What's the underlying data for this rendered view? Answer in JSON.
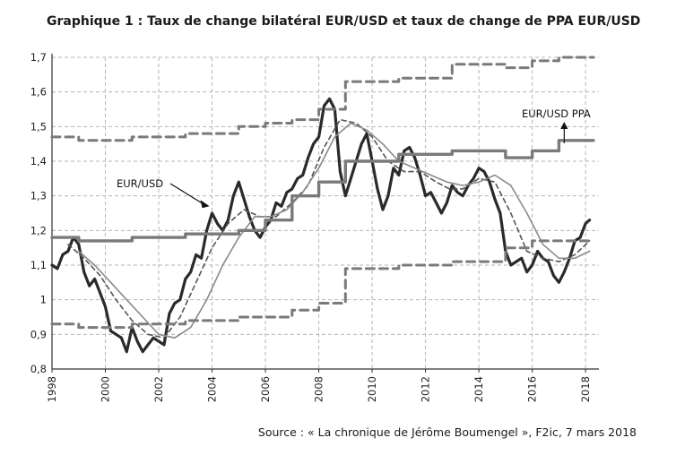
{
  "title": "Graphique 1 : Taux de change bilatéral EUR/USD et taux de change de PPA EUR/USD",
  "source": "Source : « La chronique de Jérôme Boumengel », F2ic, 7 mars 2018",
  "chart_data": {
    "type": "line",
    "title": "Graphique 1 : Taux de change bilatéral EUR/USD et taux de change de PPA EUR/USD",
    "xlim": [
      1998,
      2018.5
    ],
    "ylim": [
      0.8,
      1.7
    ],
    "grid": true,
    "x_ticks": [
      "1998",
      "2000",
      "2002",
      "2004",
      "2006",
      "2008",
      "2010",
      "2012",
      "2014",
      "2016",
      "2018"
    ],
    "y_ticks": [
      "0,8",
      "0,9",
      "1",
      "1,1",
      "1,2",
      "1,3",
      "1,4",
      "1,5",
      "1,6",
      "1,7"
    ],
    "annotations": [
      {
        "text": "EUR/USD",
        "points_to": [
          2003.9,
          1.27
        ]
      },
      {
        "text": "EUR/USD   PPA",
        "points_to": [
          2017.2,
          1.43
        ]
      }
    ],
    "series": [
      {
        "name": "EUR/USD",
        "style": "solid-thick-dark",
        "color": "#2a2a2a",
        "x": [
          1998.0,
          1998.2,
          1998.4,
          1998.6,
          1998.8,
          1999.0,
          1999.2,
          1999.4,
          1999.6,
          1999.8,
          2000.0,
          2000.2,
          2000.4,
          2000.6,
          2000.8,
          2001.0,
          2001.2,
          2001.4,
          2001.6,
          2001.8,
          2002.0,
          2002.2,
          2002.4,
          2002.6,
          2002.8,
          2003.0,
          2003.2,
          2003.4,
          2003.6,
          2003.8,
          2004.0,
          2004.2,
          2004.4,
          2004.6,
          2004.8,
          2005.0,
          2005.2,
          2005.4,
          2005.6,
          2005.8,
          2006.0,
          2006.2,
          2006.4,
          2006.6,
          2006.8,
          2007.0,
          2007.2,
          2007.4,
          2007.6,
          2007.8,
          2008.0,
          2008.2,
          2008.4,
          2008.6,
          2008.8,
          2009.0,
          2009.2,
          2009.4,
          2009.6,
          2009.8,
          2010.0,
          2010.2,
          2010.4,
          2010.6,
          2010.8,
          2011.0,
          2011.2,
          2011.4,
          2011.6,
          2011.8,
          2012.0,
          2012.2,
          2012.4,
          2012.6,
          2012.8,
          2013.0,
          2013.2,
          2013.4,
          2013.6,
          2013.8,
          2014.0,
          2014.2,
          2014.4,
          2014.6,
          2014.8,
          2015.0,
          2015.2,
          2015.4,
          2015.6,
          2015.8,
          2016.0,
          2016.2,
          2016.4,
          2016.6,
          2016.8,
          2017.0,
          2017.2,
          2017.4,
          2017.6,
          2017.8,
          2018.0,
          2018.15
        ],
        "values": [
          1.1,
          1.09,
          1.13,
          1.14,
          1.18,
          1.16,
          1.08,
          1.04,
          1.06,
          1.02,
          0.98,
          0.91,
          0.9,
          0.89,
          0.85,
          0.92,
          0.88,
          0.85,
          0.87,
          0.89,
          0.88,
          0.87,
          0.96,
          0.99,
          1.0,
          1.06,
          1.08,
          1.13,
          1.12,
          1.2,
          1.25,
          1.22,
          1.2,
          1.23,
          1.3,
          1.34,
          1.29,
          1.24,
          1.2,
          1.18,
          1.21,
          1.23,
          1.28,
          1.27,
          1.31,
          1.32,
          1.35,
          1.36,
          1.41,
          1.45,
          1.47,
          1.56,
          1.58,
          1.55,
          1.37,
          1.3,
          1.35,
          1.4,
          1.45,
          1.48,
          1.4,
          1.32,
          1.26,
          1.3,
          1.38,
          1.36,
          1.43,
          1.44,
          1.41,
          1.36,
          1.3,
          1.31,
          1.28,
          1.25,
          1.28,
          1.33,
          1.31,
          1.3,
          1.33,
          1.35,
          1.38,
          1.37,
          1.34,
          1.29,
          1.25,
          1.14,
          1.1,
          1.11,
          1.12,
          1.08,
          1.1,
          1.14,
          1.12,
          1.11,
          1.07,
          1.05,
          1.08,
          1.12,
          1.17,
          1.18,
          1.22,
          1.23
        ]
      },
      {
        "name": "",
        "style": "dashed-thin-dark",
        "color": "#555555",
        "x": [
          1998.6,
          1999.2,
          1999.8,
          2000.4,
          2001.0,
          2001.6,
          2002.2,
          2002.8,
          2003.4,
          2004.0,
          2004.6,
          2005.2,
          2005.8,
          2006.4,
          2007.0,
          2007.6,
          2008.2,
          2008.8,
          2009.4,
          2010.0,
          2010.6,
          2011.2,
          2011.8,
          2012.4,
          2012.9,
          2013.4,
          2014.0,
          2014.6,
          2015.2,
          2015.8,
          2016.4,
          2017.0,
          2017.6,
          2018.15
        ],
        "values": [
          1.16,
          1.12,
          1.07,
          1.0,
          0.94,
          0.9,
          0.89,
          0.95,
          1.05,
          1.15,
          1.22,
          1.26,
          1.24,
          1.24,
          1.28,
          1.33,
          1.44,
          1.52,
          1.51,
          1.47,
          1.4,
          1.37,
          1.37,
          1.34,
          1.32,
          1.32,
          1.35,
          1.34,
          1.25,
          1.14,
          1.12,
          1.11,
          1.13,
          1.17
        ]
      },
      {
        "name": "",
        "style": "solid-thin-gray",
        "color": "#8a8a8a",
        "x": [
          1999.0,
          1999.6,
          2000.2,
          2000.8,
          2001.4,
          2002.0,
          2002.6,
          2003.2,
          2003.8,
          2004.4,
          2005.0,
          2005.6,
          2006.2,
          2006.8,
          2007.4,
          2008.0,
          2008.6,
          2009.2,
          2009.8,
          2010.4,
          2011.0,
          2011.6,
          2012.2,
          2012.8,
          2013.4,
          2014.0,
          2014.6,
          2015.2,
          2015.8,
          2016.4,
          2017.0,
          2017.6,
          2018.15
        ],
        "values": [
          1.14,
          1.1,
          1.05,
          1.0,
          0.95,
          0.9,
          0.89,
          0.92,
          1.0,
          1.1,
          1.18,
          1.24,
          1.24,
          1.26,
          1.31,
          1.38,
          1.47,
          1.51,
          1.49,
          1.45,
          1.4,
          1.38,
          1.36,
          1.34,
          1.33,
          1.34,
          1.36,
          1.33,
          1.25,
          1.16,
          1.12,
          1.12,
          1.14
        ]
      },
      {
        "name": "PPA",
        "style": "step-thick-gray",
        "color": "#7a7a7a",
        "x": [
          1998.0,
          1999.0,
          1999.0,
          2001.0,
          2001.0,
          2003.0,
          2003.0,
          2005.0,
          2005.0,
          2006.0,
          2006.0,
          2007.0,
          2007.0,
          2008.0,
          2008.0,
          2009.0,
          2009.0,
          2011.0,
          2011.0,
          2013.0,
          2013.0,
          2015.0,
          2015.0,
          2016.0,
          2016.0,
          2017.0,
          2017.0,
          2018.3
        ],
        "values": [
          1.18,
          1.18,
          1.17,
          1.17,
          1.18,
          1.18,
          1.19,
          1.19,
          1.2,
          1.2,
          1.23,
          1.23,
          1.3,
          1.3,
          1.34,
          1.34,
          1.4,
          1.4,
          1.42,
          1.42,
          1.43,
          1.43,
          1.41,
          1.41,
          1.43,
          1.43,
          1.46,
          1.46
        ]
      },
      {
        "name": "",
        "style": "step-dashed-upper",
        "color": "#7a7a7a",
        "x": [
          1998.0,
          1999.0,
          1999.0,
          2001.0,
          2001.0,
          2003.0,
          2003.0,
          2005.0,
          2005.0,
          2006.0,
          2006.0,
          2007.0,
          2007.0,
          2008.0,
          2008.0,
          2009.0,
          2009.0,
          2011.0,
          2011.0,
          2013.0,
          2013.0,
          2015.0,
          2015.0,
          2016.0,
          2016.0,
          2017.0,
          2017.0,
          2018.3
        ],
        "values": [
          1.47,
          1.47,
          1.46,
          1.46,
          1.47,
          1.47,
          1.48,
          1.48,
          1.5,
          1.5,
          1.51,
          1.51,
          1.52,
          1.52,
          1.55,
          1.55,
          1.63,
          1.63,
          1.64,
          1.64,
          1.68,
          1.68,
          1.67,
          1.67,
          1.69,
          1.69,
          1.7,
          1.7
        ]
      },
      {
        "name": "",
        "style": "step-dashed-lower",
        "color": "#7a7a7a",
        "x": [
          1998.0,
          1999.0,
          1999.0,
          2001.0,
          2001.0,
          2003.0,
          2003.0,
          2005.0,
          2005.0,
          2006.0,
          2006.0,
          2007.0,
          2007.0,
          2008.0,
          2008.0,
          2009.0,
          2009.0,
          2011.0,
          2011.0,
          2013.0,
          2013.0,
          2015.0,
          2015.0,
          2016.0,
          2016.0,
          2017.0,
          2017.0,
          2018.3
        ],
        "values": [
          0.93,
          0.93,
          0.92,
          0.92,
          0.93,
          0.93,
          0.94,
          0.94,
          0.95,
          0.95,
          0.95,
          0.95,
          0.97,
          0.97,
          0.99,
          0.99,
          1.09,
          1.09,
          1.1,
          1.1,
          1.11,
          1.11,
          1.15,
          1.15,
          1.17,
          1.17,
          1.17,
          1.17
        ]
      }
    ]
  }
}
